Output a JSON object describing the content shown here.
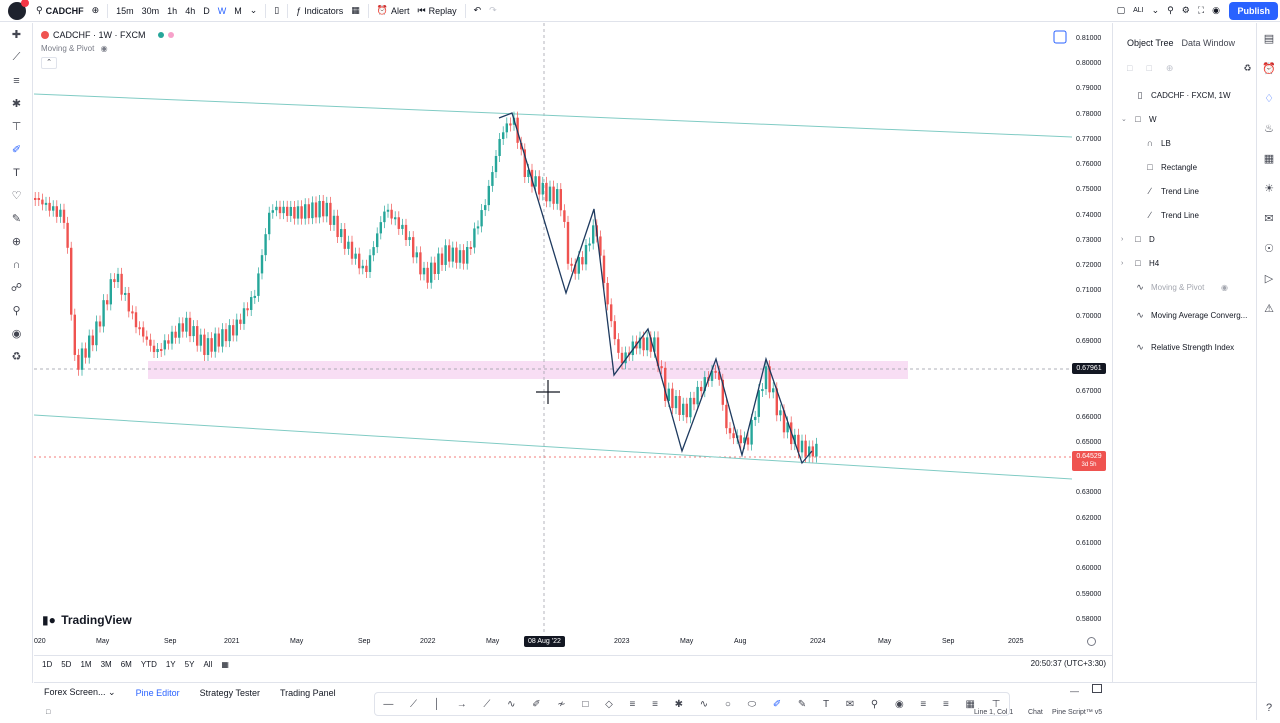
{
  "topbar": {
    "symbol": "CADCHF",
    "intervals": [
      "15m",
      "30m",
      "1h",
      "4h",
      "D",
      "W",
      "M"
    ],
    "indicators_label": "Indicators",
    "alert_label": "Alert",
    "replay_label": "Replay",
    "user_initials": "ALI",
    "publish_label": "Publish"
  },
  "legend": {
    "title": "CADCHF · 1W · FXCM",
    "indicator": "Moving & Pivot"
  },
  "object_tree": {
    "tab_active": "Object Tree",
    "tab_other": "Data Window",
    "symbol_row": "CADCHF · FXCM, 1W",
    "rows": [
      {
        "label": "W",
        "icon": "folder-icon",
        "dim": false,
        "indent": 1
      },
      {
        "label": "LB",
        "icon": "pattern-icon",
        "dim": false,
        "indent": 2
      },
      {
        "label": "Rectangle",
        "icon": "rectangle-icon",
        "dim": false,
        "indent": 2
      },
      {
        "label": "Trend Line",
        "icon": "trend-line-icon",
        "dim": false,
        "indent": 2
      },
      {
        "label": "Trend Line",
        "icon": "trend-line-icon",
        "dim": false,
        "indent": 2
      },
      {
        "label": "D",
        "icon": "folder-icon",
        "dim": false,
        "indent": 1
      },
      {
        "label": "H4",
        "icon": "folder-icon",
        "dim": false,
        "indent": 1
      },
      {
        "label": "Moving & Pivot",
        "icon": "indicator-icon",
        "dim": true,
        "indent": 1
      },
      {
        "label": "Moving Average Converg...",
        "icon": "indicator-icon",
        "dim": false,
        "indent": 1
      },
      {
        "label": "Relative Strength Index",
        "icon": "indicator-icon",
        "dim": false,
        "indent": 1
      }
    ]
  },
  "price_axis": {
    "ticks": [
      "0.81000",
      "0.80000",
      "0.79000",
      "0.78000",
      "0.77000",
      "0.76000",
      "0.75000",
      "0.74000",
      "0.73000",
      "0.72000",
      "0.71000",
      "0.70000",
      "0.69000",
      "0.67000",
      "0.66000",
      "0.65000",
      "0.63000",
      "0.62000",
      "0.61000",
      "0.60000",
      "0.59000",
      "0.58000"
    ],
    "crosshair_price": "0.67961",
    "last_price": "0.64529",
    "countdown": "3d 5h"
  },
  "time_axis": {
    "ticks": [
      "020",
      "May",
      "Sep",
      "2021",
      "May",
      "Sep",
      "2022",
      "May",
      "2023",
      "May",
      "Aug",
      "2024",
      "May",
      "Sep",
      "2025"
    ],
    "crosshair_date": "08 Aug '22"
  },
  "range_bar": {
    "ranges": [
      "1D",
      "5D",
      "1M",
      "3M",
      "6M",
      "YTD",
      "1Y",
      "5Y",
      "All"
    ],
    "clock": "20:50:37 (UTC+3:30)"
  },
  "bottom_tabs": [
    "Forex Screen...",
    "Pine Editor",
    "Strategy Tester",
    "Trading Panel"
  ],
  "bottom_tab_active": 1,
  "branding": "TradingView",
  "status": {
    "left": "Line 1, Col 1",
    "chat": "Chat",
    "version": "Pine Script™ v5"
  },
  "colors": {
    "up": "#26a69a",
    "down": "#ef5350",
    "channel": "#80cbc4",
    "zone": "#f6d3f0",
    "accent": "#2962ff",
    "pattern": "#1e3a5f"
  }
}
